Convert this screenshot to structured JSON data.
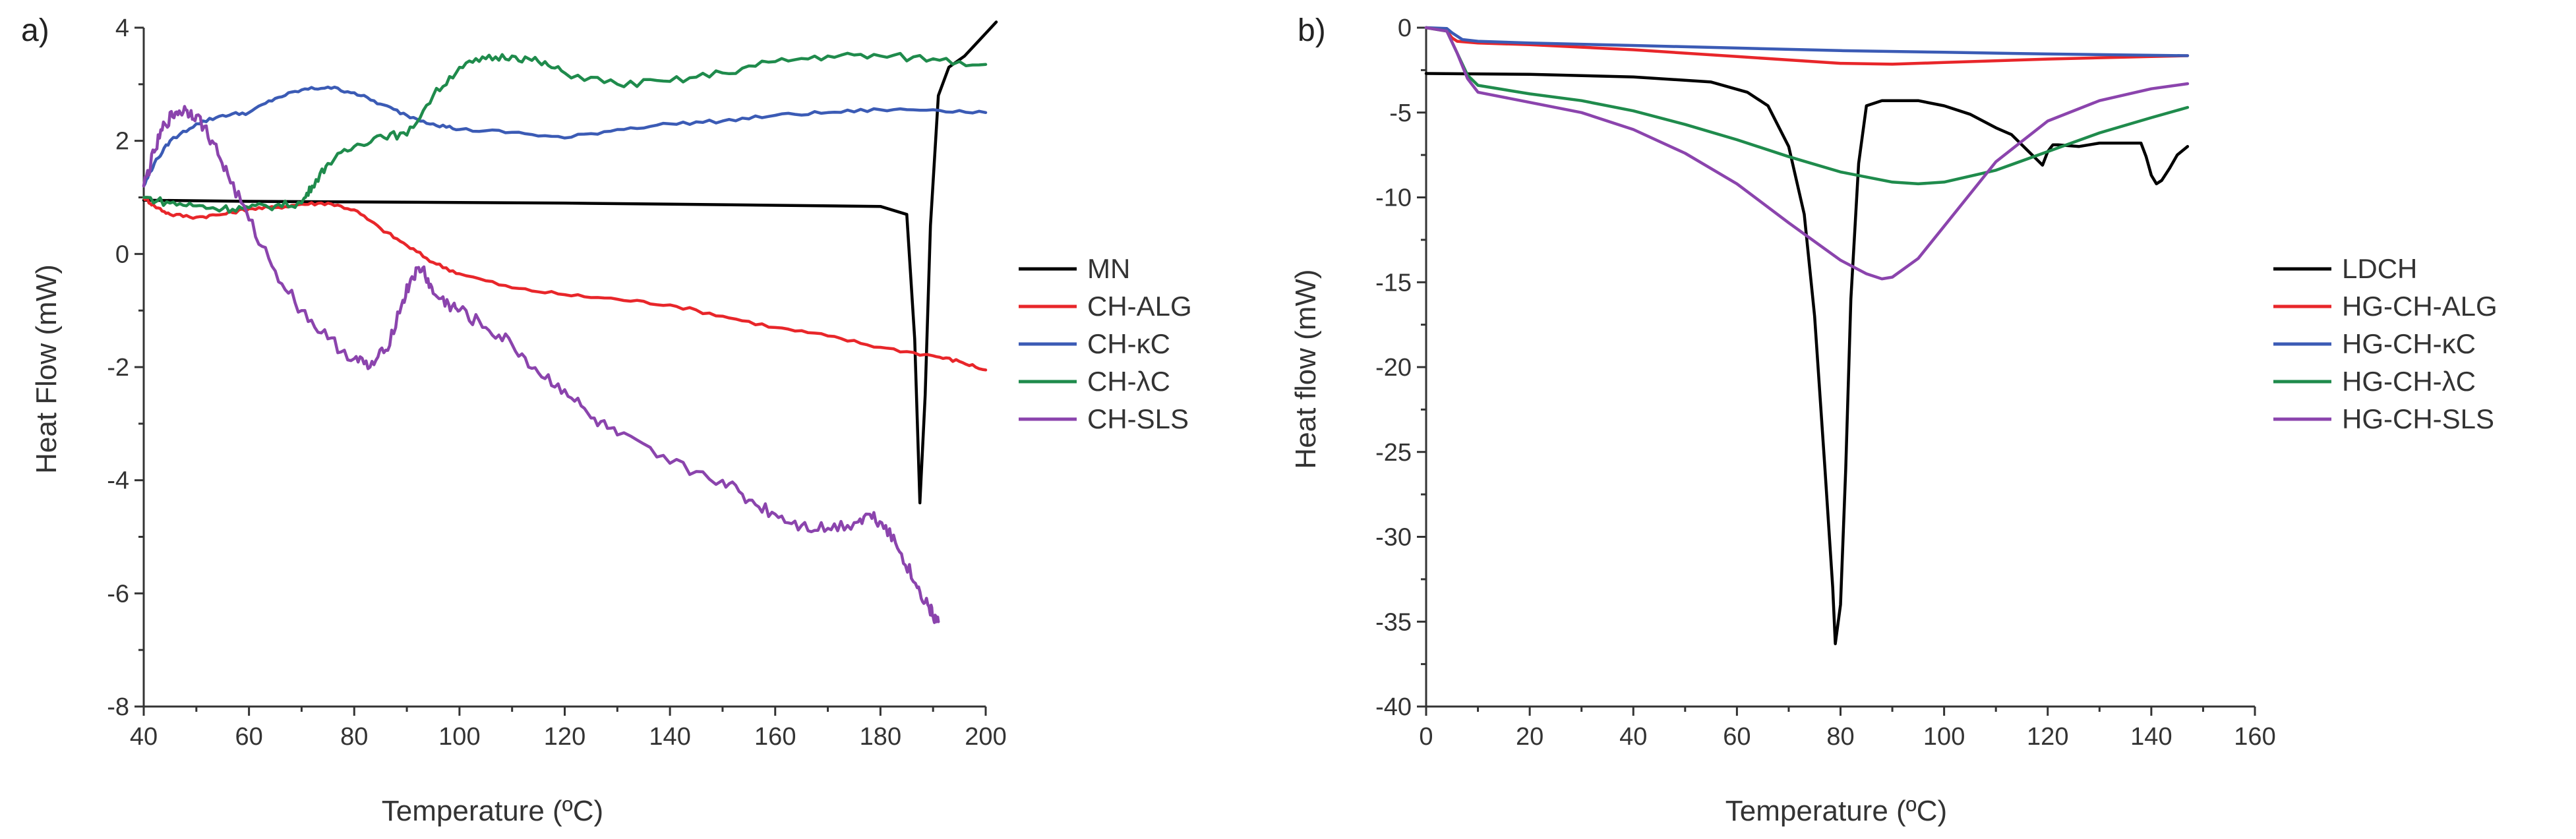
{
  "chart_data": [
    {
      "panel": "a)",
      "type": "line",
      "xlabel": "Temperature (ºC)",
      "ylabel": "Heat Flow (mW)",
      "xlim": [
        40,
        200
      ],
      "ylim": [
        -8,
        4
      ],
      "xticks": [
        40,
        60,
        80,
        100,
        120,
        140,
        160,
        180,
        200
      ],
      "yticks": [
        -8,
        -6,
        -4,
        -2,
        0,
        2,
        4
      ],
      "legend_position": "right",
      "series": [
        {
          "name": "MN",
          "color": "#000000",
          "x": [
            40,
            60,
            80,
            100,
            120,
            140,
            160,
            180,
            185,
            186.5,
            187.5,
            188.5,
            189.5,
            191,
            193,
            196,
            198,
            200,
            202
          ],
          "y": [
            0.95,
            0.93,
            0.92,
            0.91,
            0.9,
            0.88,
            0.86,
            0.84,
            0.7,
            -1.5,
            -4.4,
            -2.5,
            0.5,
            2.8,
            3.3,
            3.5,
            3.7,
            3.9,
            4.1
          ]
        },
        {
          "name": "CH-ALG",
          "color": "#e8262a",
          "x": [
            40,
            42,
            45,
            50,
            55,
            60,
            65,
            70,
            75,
            80,
            85,
            90,
            95,
            100,
            110,
            120,
            130,
            140,
            150,
            160,
            170,
            180,
            190,
            195,
            200
          ],
          "y": [
            1.0,
            0.85,
            0.7,
            0.65,
            0.7,
            0.8,
            0.82,
            0.88,
            0.9,
            0.78,
            0.45,
            0.15,
            -0.15,
            -0.35,
            -0.6,
            -0.72,
            -0.8,
            -0.9,
            -1.1,
            -1.3,
            -1.45,
            -1.65,
            -1.8,
            -1.9,
            -2.05
          ]
        },
        {
          "name": "CH-κC",
          "color": "#3b5bb5",
          "x": [
            40,
            42,
            45,
            50,
            55,
            60,
            65,
            70,
            75,
            80,
            85,
            90,
            95,
            100,
            110,
            120,
            130,
            140,
            150,
            160,
            170,
            180,
            190,
            200
          ],
          "y": [
            1.2,
            1.6,
            2.0,
            2.3,
            2.45,
            2.5,
            2.75,
            2.9,
            2.95,
            2.85,
            2.65,
            2.45,
            2.3,
            2.2,
            2.15,
            2.05,
            2.2,
            2.3,
            2.35,
            2.45,
            2.5,
            2.55,
            2.55,
            2.5
          ]
        },
        {
          "name": "CH-λC",
          "color": "#1f8b4c",
          "x": [
            40,
            45,
            50,
            55,
            60,
            65,
            70,
            72,
            75,
            80,
            85,
            90,
            95,
            100,
            105,
            110,
            115,
            120,
            130,
            140,
            150,
            160,
            170,
            180,
            190,
            200
          ],
          "y": [
            1.0,
            0.9,
            0.85,
            0.8,
            0.82,
            0.85,
            0.9,
            1.2,
            1.6,
            1.9,
            2.1,
            2.1,
            2.8,
            3.3,
            3.45,
            3.5,
            3.4,
            3.2,
            3.0,
            3.05,
            3.2,
            3.4,
            3.5,
            3.5,
            3.45,
            3.35
          ]
        },
        {
          "name": "CH-SLS",
          "color": "#8b44ad",
          "x": [
            40,
            42,
            44,
            46,
            48,
            50,
            53,
            56,
            60,
            65,
            70,
            75,
            80,
            83,
            86,
            89,
            91,
            93,
            95,
            98,
            100,
            105,
            110,
            115,
            120,
            125,
            130,
            140,
            150,
            155,
            160,
            165,
            170,
            175,
            178,
            181,
            184,
            187,
            189,
            190,
            191
          ],
          "y": [
            1.2,
            1.8,
            2.3,
            2.5,
            2.55,
            2.45,
            2.0,
            1.4,
            0.6,
            -0.3,
            -1.0,
            -1.5,
            -1.85,
            -2.0,
            -1.7,
            -0.9,
            -0.4,
            -0.25,
            -0.7,
            -0.9,
            -1.0,
            -1.3,
            -1.6,
            -2.1,
            -2.4,
            -2.9,
            -3.2,
            -3.7,
            -4.0,
            -4.35,
            -4.6,
            -4.8,
            -4.85,
            -4.75,
            -4.6,
            -4.8,
            -5.3,
            -5.9,
            -6.2,
            -6.4,
            -6.5
          ]
        }
      ]
    },
    {
      "panel": "b)",
      "type": "line",
      "xlabel": "Temperature (ºC)",
      "ylabel": "Heat flow (mW)",
      "xlim": [
        0,
        160
      ],
      "ylim": [
        -40,
        0
      ],
      "xticks": [
        0,
        20,
        40,
        60,
        80,
        100,
        120,
        140,
        160
      ],
      "yticks": [
        0,
        -5,
        -10,
        -15,
        -20,
        -25,
        -30,
        -35,
        -40
      ],
      "legend_position": "right",
      "series": [
        {
          "name": "LDCH",
          "color": "#000000",
          "x": [
            0,
            20,
            40,
            55,
            62,
            66,
            70,
            73,
            75,
            77,
            78.5,
            79,
            80,
            81,
            82,
            83.5,
            85,
            88,
            95,
            100,
            105,
            110,
            113,
            116,
            118,
            119,
            120,
            121,
            122,
            126,
            130,
            138,
            139,
            140,
            141,
            142,
            143.5,
            145,
            147
          ],
          "y": [
            -2.7,
            -2.75,
            -2.9,
            -3.2,
            -3.8,
            -4.6,
            -7,
            -11,
            -17,
            -26,
            -33,
            -36.3,
            -34,
            -26,
            -16,
            -8,
            -4.6,
            -4.3,
            -4.3,
            -4.6,
            -5.1,
            -5.9,
            -6.3,
            -7.2,
            -7.8,
            -8.1,
            -7.3,
            -6.9,
            -6.9,
            -7.0,
            -6.8,
            -6.8,
            -7.6,
            -8.7,
            -9.2,
            -9.0,
            -8.3,
            -7.5,
            -7.0
          ]
        },
        {
          "name": "HG-CH-ALG",
          "color": "#e8262a",
          "x": [
            0,
            4,
            5,
            6,
            10,
            20,
            40,
            60,
            80,
            90,
            100,
            120,
            140,
            147
          ],
          "y": [
            0,
            -0.2,
            -0.6,
            -0.8,
            -0.9,
            -1.0,
            -1.3,
            -1.7,
            -2.1,
            -2.15,
            -2.05,
            -1.85,
            -1.7,
            -1.65
          ]
        },
        {
          "name": "HG-CH-κC",
          "color": "#3b5bb5",
          "x": [
            0,
            4,
            5,
            7,
            10,
            20,
            40,
            60,
            80,
            100,
            120,
            147
          ],
          "y": [
            0,
            -0.05,
            -0.3,
            -0.7,
            -0.8,
            -0.9,
            -1.05,
            -1.2,
            -1.35,
            -1.45,
            -1.55,
            -1.65
          ]
        },
        {
          "name": "HG-CH-λC",
          "color": "#1f8b4c",
          "x": [
            0,
            4,
            6,
            8,
            10,
            20,
            30,
            40,
            50,
            60,
            70,
            80,
            90,
            95,
            100,
            110,
            120,
            130,
            140,
            147
          ],
          "y": [
            0,
            -0.2,
            -1.5,
            -2.8,
            -3.4,
            -3.9,
            -4.3,
            -4.9,
            -5.7,
            -6.6,
            -7.6,
            -8.5,
            -9.1,
            -9.2,
            -9.1,
            -8.4,
            -7.3,
            -6.2,
            -5.3,
            -4.7
          ]
        },
        {
          "name": "HG-CH-SLS",
          "color": "#8b44ad",
          "x": [
            0,
            4,
            6,
            8,
            10,
            20,
            30,
            40,
            50,
            60,
            70,
            80,
            85,
            88,
            90,
            95,
            100,
            110,
            120,
            130,
            140,
            147
          ],
          "y": [
            0,
            -0.2,
            -1.5,
            -3.0,
            -3.8,
            -4.4,
            -5.0,
            -6.0,
            -7.4,
            -9.2,
            -11.5,
            -13.7,
            -14.5,
            -14.8,
            -14.7,
            -13.6,
            -11.7,
            -7.9,
            -5.5,
            -4.3,
            -3.6,
            -3.3
          ]
        }
      ]
    }
  ]
}
